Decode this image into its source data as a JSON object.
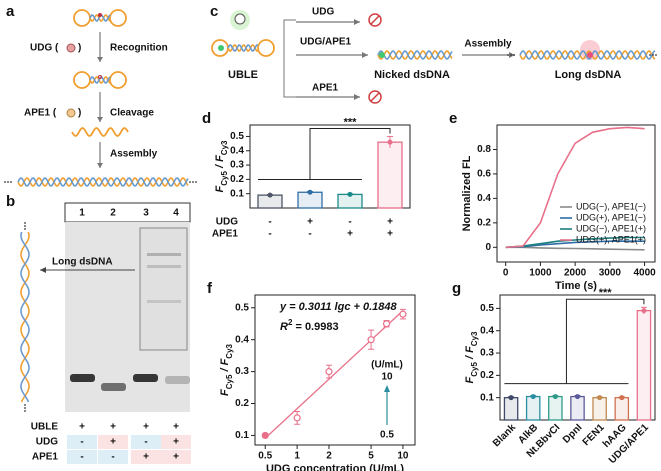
{
  "figure": {
    "a": {
      "letter": "a",
      "steps": [
        {
          "enzyme": "UDG (",
          "close": ")",
          "action": "Recognition"
        },
        {
          "enzyme": "APE1 (",
          "close": ")",
          "action": "Cleavage"
        },
        {
          "action": "Assembly"
        }
      ]
    },
    "b": {
      "letter": "b",
      "lanes": [
        "1",
        "2",
        "3",
        "4"
      ],
      "band_label": "Long dsDNA",
      "rows": [
        {
          "name": "UBLE",
          "signs": [
            "+",
            "+",
            "+",
            "+"
          ]
        },
        {
          "name": "UDG",
          "signs": [
            "-",
            "+",
            "-",
            "+"
          ]
        },
        {
          "name": "APE1",
          "signs": [
            "-",
            "-",
            "+",
            "+"
          ]
        }
      ]
    },
    "c": {
      "letter": "c",
      "branches": [
        "UDG",
        "UDG/APE1",
        "APE1"
      ],
      "arrow": "Assembly",
      "labels": [
        "UBLE",
        "Nicked dsDNA",
        "Long dsDNA"
      ]
    }
  },
  "chart_data": [
    {
      "panel": "d",
      "type": "bar",
      "ylabel": [
        "F",
        "Cy5",
        " / F",
        "Cy3"
      ],
      "categories": [
        null,
        null,
        null,
        null
      ],
      "values": [
        0.09,
        0.11,
        0.095,
        0.46
      ],
      "errors": [
        0.004,
        0.005,
        0.004,
        0.04
      ],
      "colors": [
        "#4d5566",
        "#2f6fa6",
        "#1d8a8a",
        "#e8708a"
      ],
      "ylim": [
        0,
        0.58
      ],
      "yticks": [
        0.1,
        0.2,
        0.3,
        0.4,
        0.5
      ],
      "rows": [
        {
          "name": "UDG",
          "signs": [
            "-",
            "+",
            "-",
            "+"
          ]
        },
        {
          "name": "APE1",
          "signs": [
            "-",
            "-",
            "+",
            "+"
          ]
        }
      ],
      "annotation": "***"
    },
    {
      "panel": "e",
      "type": "line",
      "xlabel": "Time (s)",
      "ylabel": "Normalized FL",
      "x": [
        0,
        500,
        1000,
        1500,
        2000,
        2500,
        3000,
        3500,
        4000
      ],
      "series": [
        {
          "name": "UDG(−), APE1(−)",
          "color": "#8a8a8a",
          "values": [
            0,
            0,
            -0.005,
            -0.008,
            -0.01,
            -0.012,
            -0.015,
            -0.018,
            -0.02
          ]
        },
        {
          "name": "UDG(+), APE1(−)",
          "color": "#2f6fa6",
          "values": [
            0,
            0.005,
            0.02,
            0.03,
            0.04,
            0.045,
            0.05,
            0.05,
            0.05
          ]
        },
        {
          "name": "UDG(−), APE1(+)",
          "color": "#1d7f80",
          "values": [
            0,
            0.01,
            0.03,
            0.05,
            0.06,
            0.07,
            0.075,
            0.08,
            0.08
          ]
        },
        {
          "name": "UDG(+), APE1(+)",
          "color": "#e8708a",
          "values": [
            0,
            0.01,
            0.2,
            0.6,
            0.85,
            0.94,
            0.97,
            0.98,
            0.97
          ]
        }
      ],
      "xlim": [
        -250,
        4300
      ],
      "xticks": [
        0,
        1000,
        2000,
        3000,
        4000
      ],
      "ylim": [
        -0.12,
        1.0
      ],
      "yticks": [
        0,
        0.2,
        0.4,
        0.6,
        0.8
      ],
      "legend": "lower right"
    },
    {
      "panel": "f",
      "type": "scatter",
      "xscale": "log",
      "xlabel": "UDG concentration (U/mL)",
      "ylabel": [
        "F",
        "Cy5",
        " / F",
        "Cy3"
      ],
      "x": [
        0.5,
        1,
        2,
        5,
        7,
        10
      ],
      "values": [
        0.1,
        0.155,
        0.3,
        0.4,
        0.45,
        0.48
      ],
      "errors": [
        0.005,
        0.02,
        0.02,
        0.03,
        0.01,
        0.015
      ],
      "filled": [
        true,
        false,
        false,
        false,
        false,
        false
      ],
      "color": "#e8708a",
      "xlim": [
        0.4,
        13
      ],
      "xticks": [
        0.5,
        1,
        2,
        5,
        10
      ],
      "ylim": [
        0.07,
        0.54
      ],
      "yticks": [
        0.1,
        0.2,
        0.3,
        0.4,
        0.5
      ],
      "equation": "y = 0.3011 lgc + 0.1848",
      "r2": [
        "R",
        "2",
        " = 0.9983"
      ],
      "annotations": [
        "(U/mL)",
        "10",
        "0.5"
      ]
    },
    {
      "panel": "g",
      "type": "bar",
      "ylabel": [
        "F",
        "Cy5",
        " / F",
        "Cy3"
      ],
      "categories": [
        "Blank",
        "AlkB",
        "Nt.BbvCI",
        "DpnI",
        "FEN1",
        "hAAG",
        "UDG/APE1"
      ],
      "values": [
        0.1,
        0.105,
        0.105,
        0.105,
        0.1,
        0.1,
        0.49
      ],
      "errors": [
        0.004,
        0.004,
        0.004,
        0.004,
        0.004,
        0.004,
        0.015
      ],
      "colors": [
        "#3f4a66",
        "#2a8fa0",
        "#2f9a8a",
        "#5a5a9a",
        "#c08a50",
        "#d07050",
        "#e8708a"
      ],
      "ylim": [
        0,
        0.56
      ],
      "yticks": [
        0.1,
        0.2,
        0.3,
        0.4,
        0.5
      ],
      "annotation": "***"
    }
  ]
}
